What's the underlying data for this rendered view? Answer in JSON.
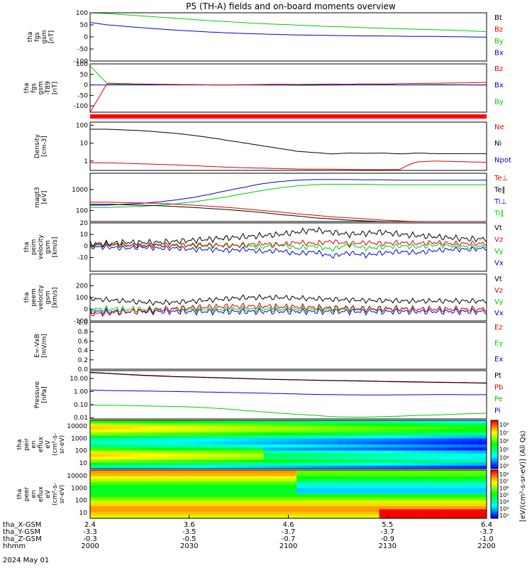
{
  "title": "P5 (TH-A) fields and on-board moments overview",
  "xaxis": {
    "rows": [
      {
        "label": "tha_X-GSM",
        "values": [
          "2.4",
          "3.6",
          "4.6",
          "5.5",
          "6.4"
        ]
      },
      {
        "label": "tha_Y-GSM",
        "values": [
          "-3.3",
          "-3.5",
          "-3.7",
          "-3.7",
          "-3.7"
        ]
      },
      {
        "label": "tha_Z-GSM",
        "values": [
          "-0.3",
          "-0.5",
          "-0.7",
          "-0.9",
          "-1.0"
        ]
      },
      {
        "label": "hhmm",
        "values": [
          "2000",
          "2030",
          "2100",
          "2130",
          "2200"
        ]
      }
    ],
    "date": "2024 May 01"
  },
  "chart_data": [
    {
      "type": "line",
      "id": "p1",
      "ylabel": [
        "tha",
        "fgs",
        "gsm",
        "[nT]"
      ],
      "ylim": [
        -100,
        100
      ],
      "ticks": [
        "100",
        "50",
        "0",
        "-50",
        "-100"
      ],
      "series": [
        {
          "name": "Bt",
          "color": "#000000",
          "values": [
            100,
            100,
            100,
            100,
            100,
            100,
            100,
            100,
            100,
            100,
            100,
            100,
            100,
            100,
            100,
            100,
            100,
            100,
            100,
            100,
            100,
            100,
            100,
            100
          ]
        },
        {
          "name": "Bz",
          "color": "#dd0000",
          "values": [
            100,
            100,
            100,
            100,
            100,
            100,
            100,
            100,
            100,
            100,
            100,
            100,
            100,
            100,
            100,
            100,
            100,
            100,
            100,
            100,
            100,
            100,
            100,
            100
          ]
        },
        {
          "name": "By",
          "color": "#00cc00",
          "values": [
            100,
            97,
            92,
            87,
            82,
            77,
            72,
            67,
            63,
            59,
            55,
            52,
            49,
            46,
            43,
            41,
            38,
            36,
            34,
            32,
            30,
            28,
            25,
            22
          ]
        },
        {
          "name": "Bx",
          "color": "#0000dd",
          "values": [
            60,
            50,
            44,
            38,
            33,
            28,
            24,
            20,
            17,
            14,
            12,
            10,
            8,
            7,
            6,
            5,
            4,
            4,
            3,
            2,
            2,
            1,
            0,
            -1
          ]
        }
      ]
    },
    {
      "type": "line",
      "id": "p2",
      "ylabel": [
        "tha",
        "fgs",
        "gsm",
        "-T89",
        "[nT]"
      ],
      "ylim": [
        -130,
        100
      ],
      "ticks": [
        "100",
        "50",
        "0",
        "-50",
        "-100"
      ],
      "series": [
        {
          "name": "Bz",
          "color": "#dd0000",
          "values": [
            -130,
            8,
            6,
            4,
            3,
            2,
            1,
            0,
            0,
            1,
            2,
            3,
            2,
            3,
            4,
            3,
            5,
            4,
            6,
            7,
            8,
            9,
            10,
            12
          ]
        },
        {
          "name": "Bx",
          "color": "#0000dd",
          "values": [
            0,
            0,
            0,
            0,
            0,
            0,
            0,
            0,
            0,
            0,
            0,
            0,
            0,
            0,
            0,
            0,
            0,
            0,
            0,
            0,
            0,
            0,
            0,
            0
          ]
        },
        {
          "name": "By",
          "color": "#00cc00",
          "values": [
            90,
            5,
            3,
            2,
            2,
            1,
            1,
            0,
            0,
            0,
            -1,
            -1,
            -2,
            -2,
            -1,
            0,
            1,
            2,
            0,
            1,
            2,
            1,
            0,
            -1
          ]
        }
      ]
    },
    {
      "type": "line",
      "id": "p3",
      "log": true,
      "ylabel": [
        "Density",
        "[cm-3]"
      ],
      "ylim": [
        0.3,
        150
      ],
      "ticks": [
        "100",
        "10",
        "1"
      ],
      "series": [
        {
          "name": "Ne",
          "color": "#dd0000",
          "values": [
            0.8,
            0.8,
            0.75,
            0.7,
            0.65,
            0.6,
            0.55,
            0.5,
            0.45,
            0.42,
            0.4,
            0.38,
            0.36,
            0.35,
            0.35,
            0.34,
            0.33,
            0.33,
            0.34,
            0.9,
            1.0,
            0.95,
            0.9,
            0.85
          ]
        },
        {
          "name": "Ni",
          "color": "#000000",
          "values": [
            60,
            60,
            55,
            50,
            42,
            35,
            27,
            20,
            14,
            10,
            7,
            5,
            3.5,
            3,
            2.5,
            2.8,
            2.7,
            2.8,
            2.5,
            2.8,
            2.6,
            2.6,
            2.6,
            2.6
          ]
        }
      ],
      "legend_extra": [
        {
          "name": "Npot",
          "color": "#0000dd"
        }
      ]
    },
    {
      "type": "line",
      "id": "p4",
      "log": true,
      "ylabel": [
        "magt3",
        "[eV]"
      ],
      "ylim": [
        30,
        6000
      ],
      "ticks": [
        "1000",
        "100"
      ],
      "series": [
        {
          "name": "Te⊥",
          "color": "#dd0000",
          "values": [
            250,
            250,
            240,
            230,
            220,
            200,
            180,
            160,
            140,
            120,
            100,
            85,
            70,
            60,
            50,
            45,
            40,
            35,
            32,
            30,
            30,
            30,
            30,
            30
          ]
        },
        {
          "name": "Te∥",
          "color": "#000000",
          "values": [
            200,
            200,
            190,
            180,
            170,
            155,
            140,
            125,
            110,
            95,
            80,
            65,
            55,
            45,
            40,
            35,
            32,
            30,
            28,
            26,
            26,
            26,
            26,
            26
          ]
        },
        {
          "name": "Ti⊥",
          "color": "#0000dd",
          "values": [
            180,
            180,
            200,
            220,
            260,
            320,
            420,
            600,
            900,
            1300,
            1900,
            2400,
            2800,
            3000,
            3000,
            3000,
            2900,
            2900,
            2800,
            2800,
            2800,
            2800,
            2800,
            2800
          ]
        },
        {
          "name": "Ti∥",
          "color": "#00cc00",
          "values": [
            140,
            140,
            150,
            160,
            180,
            210,
            260,
            340,
            460,
            650,
            900,
            1200,
            1500,
            1700,
            1800,
            1800,
            1800,
            1700,
            1700,
            1700,
            1700,
            1700,
            1700,
            1700
          ]
        }
      ]
    },
    {
      "type": "line",
      "id": "p5",
      "ylabel": [
        "tha",
        "peim",
        "velocity",
        "gsm",
        "[km/s]"
      ],
      "ylim": [
        -22,
        20
      ],
      "ticks": [
        "20",
        "10",
        "0",
        "-10"
      ],
      "series": [
        {
          "name": "Vt",
          "color": "#000000",
          "values": [
            2,
            2,
            3,
            3,
            3,
            4,
            5,
            6,
            7,
            8,
            9,
            10,
            12,
            14,
            12,
            10,
            11,
            12,
            10,
            9,
            8,
            7,
            6,
            6
          ]
        },
        {
          "name": "Vz",
          "color": "#dd0000",
          "values": [
            1,
            1,
            1,
            0,
            1,
            0,
            1,
            1,
            0,
            1,
            2,
            1,
            3,
            2,
            4,
            2,
            3,
            2,
            3,
            2,
            3,
            2,
            2,
            2
          ]
        },
        {
          "name": "Vy",
          "color": "#00cc00",
          "values": [
            0,
            1,
            0,
            1,
            0,
            1,
            0,
            0,
            1,
            0,
            -1,
            1,
            -2,
            0,
            -3,
            1,
            -2,
            -1,
            0,
            -1,
            1,
            0,
            -1,
            0
          ]
        },
        {
          "name": "Vx",
          "color": "#0000dd",
          "values": [
            -1,
            -1,
            -2,
            -1,
            -2,
            -2,
            -3,
            -3,
            -4,
            -3,
            -5,
            -4,
            -7,
            -5,
            -9,
            -6,
            -8,
            -6,
            -5,
            -6,
            -4,
            -3,
            -3,
            -2
          ]
        }
      ]
    },
    {
      "type": "line",
      "id": "p6",
      "ylabel": [
        "tha",
        "peem",
        "velocity",
        "gsm",
        "[km/s]"
      ],
      "ylim": [
        -100,
        300
      ],
      "ticks": [
        "200",
        "100",
        "0",
        "-100"
      ],
      "series": [
        {
          "name": "Vt",
          "color": "#000000",
          "values": [
            90,
            80,
            70,
            60,
            55,
            60,
            70,
            80,
            90,
            100,
            100,
            100,
            95,
            90,
            85,
            80,
            75,
            75,
            70,
            70,
            70,
            70,
            70,
            70
          ]
        },
        {
          "name": "Vz",
          "color": "#dd0000",
          "values": [
            -40,
            -35,
            -25,
            -15,
            -5,
            5,
            15,
            20,
            25,
            25,
            25,
            20,
            20,
            15,
            10,
            10,
            5,
            5,
            5,
            0,
            0,
            0,
            0,
            0
          ]
        },
        {
          "name": "Vy",
          "color": "#00cc00",
          "values": [
            0,
            0,
            0,
            0,
            0,
            0,
            0,
            0,
            0,
            0,
            0,
            0,
            0,
            0,
            0,
            0,
            0,
            0,
            0,
            0,
            0,
            0,
            0,
            0
          ]
        },
        {
          "name": "Vx",
          "color": "#0000dd",
          "values": [
            -20,
            -20,
            -20,
            -20,
            -20,
            -20,
            -20,
            -20,
            -20,
            -20,
            -20,
            -20,
            -20,
            -20,
            -20,
            -20,
            -20,
            -20,
            -20,
            -20,
            -20,
            -20,
            -20,
            -20
          ]
        }
      ]
    },
    {
      "type": "line",
      "id": "p7",
      "ylabel": [
        "E=-VxB",
        "[mV/m]"
      ],
      "ylim": [
        0,
        1.0
      ],
      "ticks": [
        "1.0",
        "0.8",
        "0.6",
        "0.4",
        "0.2",
        "0.0"
      ],
      "series": [],
      "legend_extra": [
        {
          "name": "Ez",
          "color": "#dd0000"
        },
        {
          "name": "Ey",
          "color": "#00cc00"
        },
        {
          "name": "Ex",
          "color": "#0000dd"
        }
      ]
    },
    {
      "type": "line",
      "id": "p8",
      "log": true,
      "ylabel": [
        "Pressure",
        "[nPa]"
      ],
      "ylim": [
        0.008,
        40
      ],
      "ticks": [
        "10.00",
        "1.00",
        "0.10",
        "0.01"
      ],
      "series": [
        {
          "name": "Pt",
          "color": "#000000",
          "values": [
            30,
            25,
            21,
            18,
            16,
            14,
            13,
            12,
            11,
            10,
            9,
            8.5,
            8,
            7.5,
            7,
            6.8,
            6.5,
            6,
            5.8,
            5.5,
            5.2,
            5,
            4.8,
            4.5
          ]
        },
        {
          "name": "Pb",
          "color": "#dd0000",
          "values": [
            28,
            24,
            20,
            17,
            15,
            13.5,
            12.5,
            11.5,
            10.5,
            9.5,
            8.8,
            8.2,
            7.7,
            7.2,
            6.8,
            6.5,
            6.2,
            5.8,
            5.5,
            5.2,
            5,
            4.8,
            4.6,
            4.3
          ]
        },
        {
          "name": "Pe",
          "color": "#00cc00",
          "values": [
            0.09,
            0.09,
            0.085,
            0.08,
            0.075,
            0.07,
            0.065,
            0.055,
            0.045,
            0.035,
            0.028,
            0.022,
            0.018,
            0.015,
            0.012,
            0.011,
            0.011,
            0.012,
            0.013,
            0.015,
            0.016,
            0.018,
            0.02,
            0.022
          ]
        },
        {
          "name": "Pi",
          "color": "#0000dd",
          "values": [
            1.3,
            1.2,
            1.15,
            1.1,
            1.05,
            1.0,
            0.95,
            0.9,
            0.85,
            0.8,
            0.75,
            0.7,
            0.65,
            0.6,
            0.58,
            0.56,
            0.55,
            0.55,
            0.56,
            0.57,
            0.58,
            0.58,
            0.57,
            0.57
          ]
        }
      ]
    },
    {
      "type": "heatmap",
      "id": "p9",
      "ylabel": [
        "tha",
        "peir",
        "en",
        "eflux",
        "eV",
        "(cm²-s-",
        "sr-eV)"
      ],
      "ticks": [
        "10000",
        "1000",
        "100",
        "10"
      ],
      "cbar": [
        "10⁸",
        "10⁷",
        "10⁶",
        "10⁵",
        "10⁴",
        "10³"
      ]
    },
    {
      "type": "heatmap",
      "id": "p10",
      "ylabel": [
        "tha",
        "peer",
        "en",
        "eflux",
        "eV",
        "(cm²-s-",
        "sr-eV)"
      ],
      "ticks": [
        "10000",
        "1000",
        "100",
        "10"
      ],
      "cbar": [
        "10⁸",
        "10⁷",
        "10⁶",
        "10⁵",
        "10⁴",
        "10³",
        "10²"
      ]
    }
  ],
  "colorbar_label": "[eV/(cm²-s-sr-eV)] (All Qs)"
}
